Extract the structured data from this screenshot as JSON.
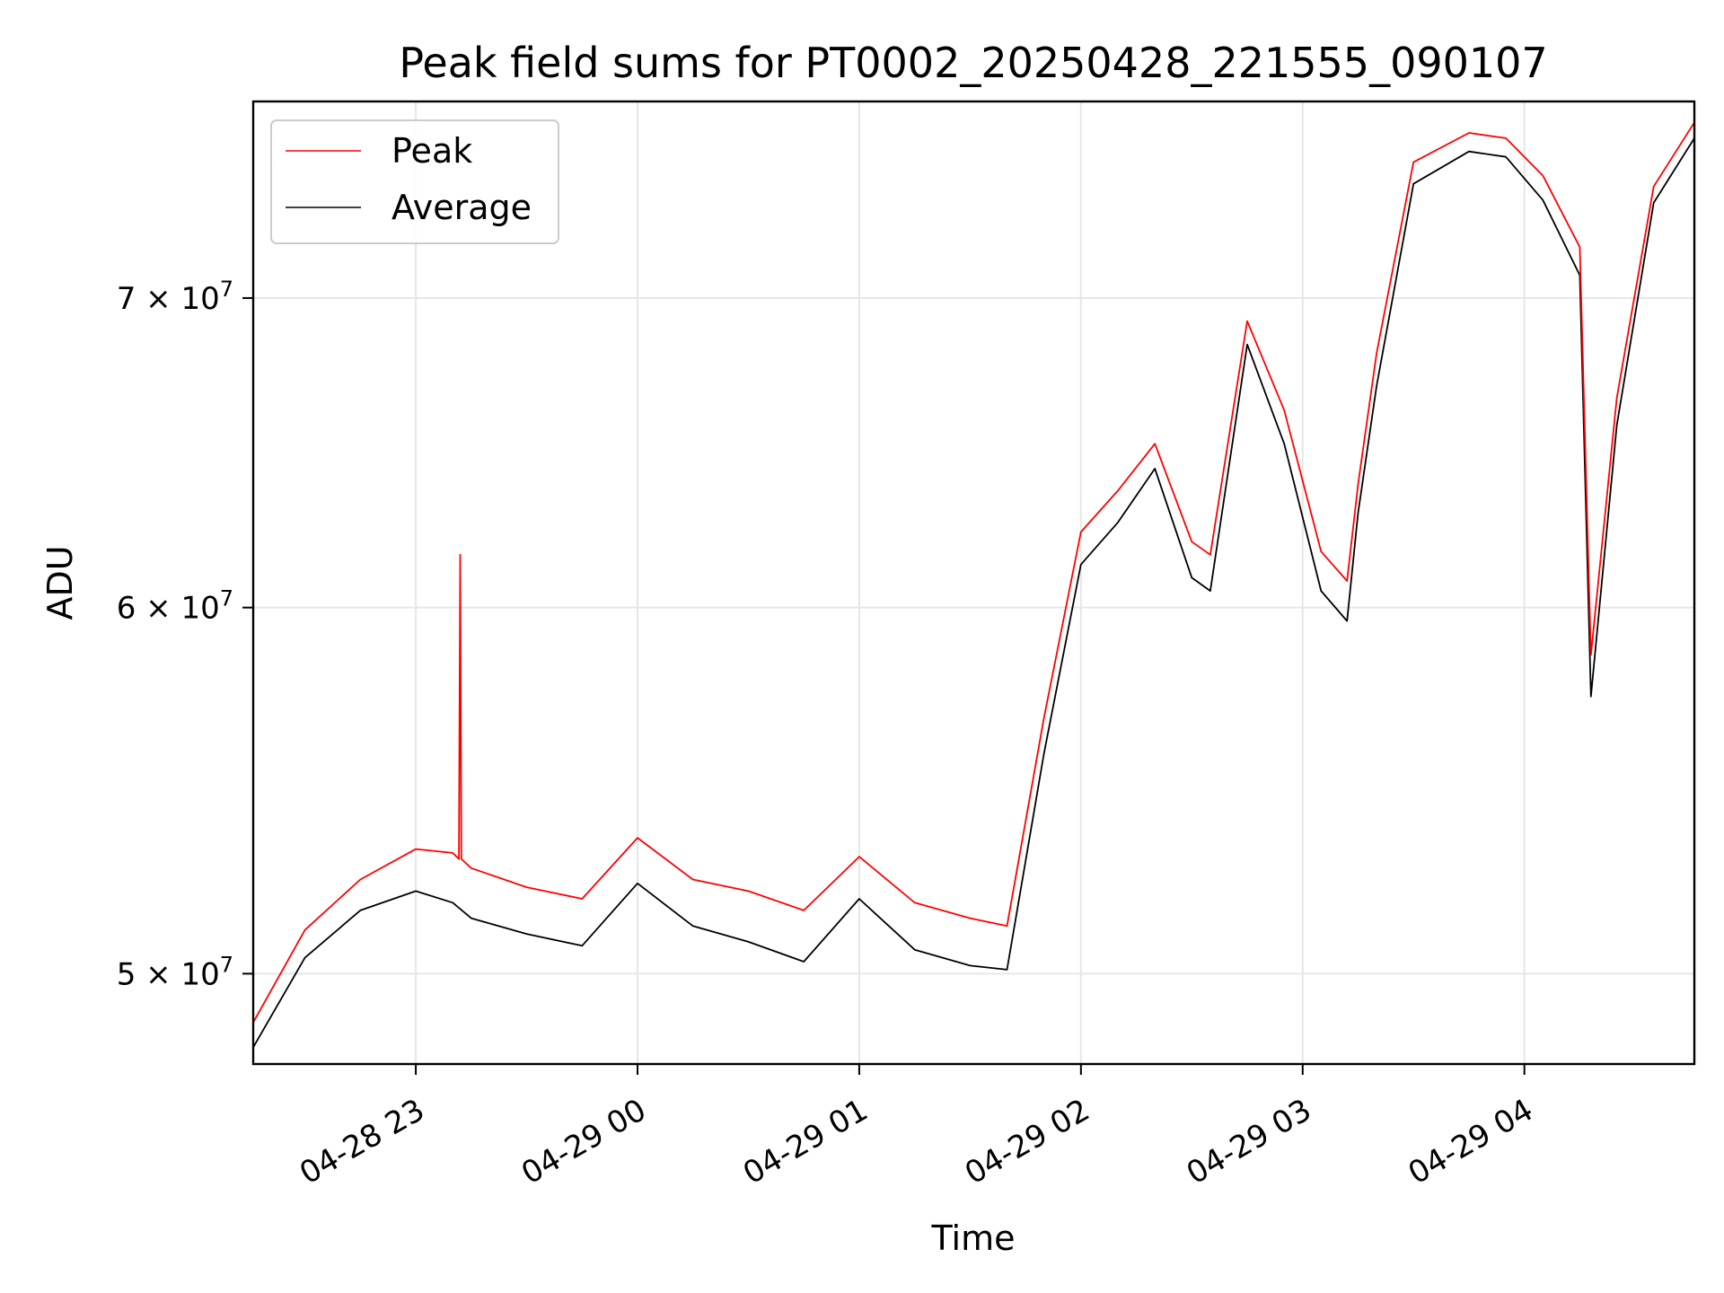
{
  "chart_data": {
    "type": "line",
    "title": "Peak field sums for PT0002_20250428_221555_090107",
    "xlabel": "Time",
    "ylabel": "ADU",
    "y_scale": "log",
    "grid": true,
    "legend_position": "top-left",
    "xlim": [
      "2025-04-28 22:16",
      "2025-04-29 04:46"
    ],
    "ylim": [
      47800000.0,
      77200000.0
    ],
    "x_ticks": [
      "04-28 23",
      "04-29 00",
      "04-29 01",
      "04-29 02",
      "04-29 03",
      "04-29 04"
    ],
    "x_tick_times": [
      "2025-04-28 23:00",
      "2025-04-29 00:00",
      "2025-04-29 01:00",
      "2025-04-29 02:00",
      "2025-04-29 03:00",
      "2025-04-29 04:00"
    ],
    "y_ticks": [
      {
        "value": 50000000.0,
        "mantissa": "5",
        "exponent": "7"
      },
      {
        "value": 60000000.0,
        "mantissa": "6",
        "exponent": "7"
      },
      {
        "value": 70000000.0,
        "mantissa": "7",
        "exponent": "7"
      }
    ],
    "x": [
      "2025-04-28 22:16",
      "2025-04-28 22:30",
      "2025-04-28 22:45",
      "2025-04-28 23:00",
      "2025-04-28 23:10",
      "2025-04-28 23:15",
      "2025-04-28 23:30",
      "2025-04-28 23:45",
      "2025-04-29 00:00",
      "2025-04-29 00:15",
      "2025-04-29 00:30",
      "2025-04-29 00:45",
      "2025-04-29 01:00",
      "2025-04-29 01:15",
      "2025-04-29 01:30",
      "2025-04-29 01:40",
      "2025-04-29 01:50",
      "2025-04-29 02:00",
      "2025-04-29 02:10",
      "2025-04-29 02:20",
      "2025-04-29 02:30",
      "2025-04-29 02:35",
      "2025-04-29 02:45",
      "2025-04-29 02:55",
      "2025-04-29 03:05",
      "2025-04-29 03:12",
      "2025-04-29 03:15",
      "2025-04-29 03:20",
      "2025-04-29 03:30",
      "2025-04-29 03:45",
      "2025-04-29 03:55",
      "2025-04-29 04:05",
      "2025-04-29 04:15",
      "2025-04-29 04:18",
      "2025-04-29 04:25",
      "2025-04-29 04:35",
      "2025-04-29 04:46"
    ],
    "series": [
      {
        "name": "Peak",
        "color": "#ff0000",
        "values": [
          48800000,
          51100000,
          52400000,
          53200000,
          53100000,
          52700000,
          52200000,
          51900000,
          53500000,
          52400000,
          52100000,
          51600000,
          53000000,
          51800000,
          51400000,
          51200000,
          56800000,
          62300000,
          63600000,
          65100000,
          62000000,
          61600000,
          69200000,
          66200000,
          61700000,
          60800000,
          63800000,
          68100000,
          74900000,
          76000000,
          75800000,
          74400000,
          71800000,
          58600000,
          66600000,
          74000000,
          76400000
        ],
        "spike": {
          "x": "2025-04-28 23:12",
          "value": 61600000
        }
      },
      {
        "name": "Average",
        "color": "#000000",
        "values": [
          48200000,
          50400000,
          51600000,
          52100000,
          51800000,
          51400000,
          51000000,
          50700000,
          52300000,
          51200000,
          50800000,
          50300000,
          51900000,
          50600000,
          50200000,
          50100000,
          55800000,
          61300000,
          62600000,
          64300000,
          60900000,
          60500000,
          68400000,
          65100000,
          60500000,
          59600000,
          62900000,
          67000000,
          74100000,
          75300000,
          75100000,
          73500000,
          70800000,
          57400000,
          65700000,
          73400000,
          75800000
        ]
      }
    ]
  }
}
